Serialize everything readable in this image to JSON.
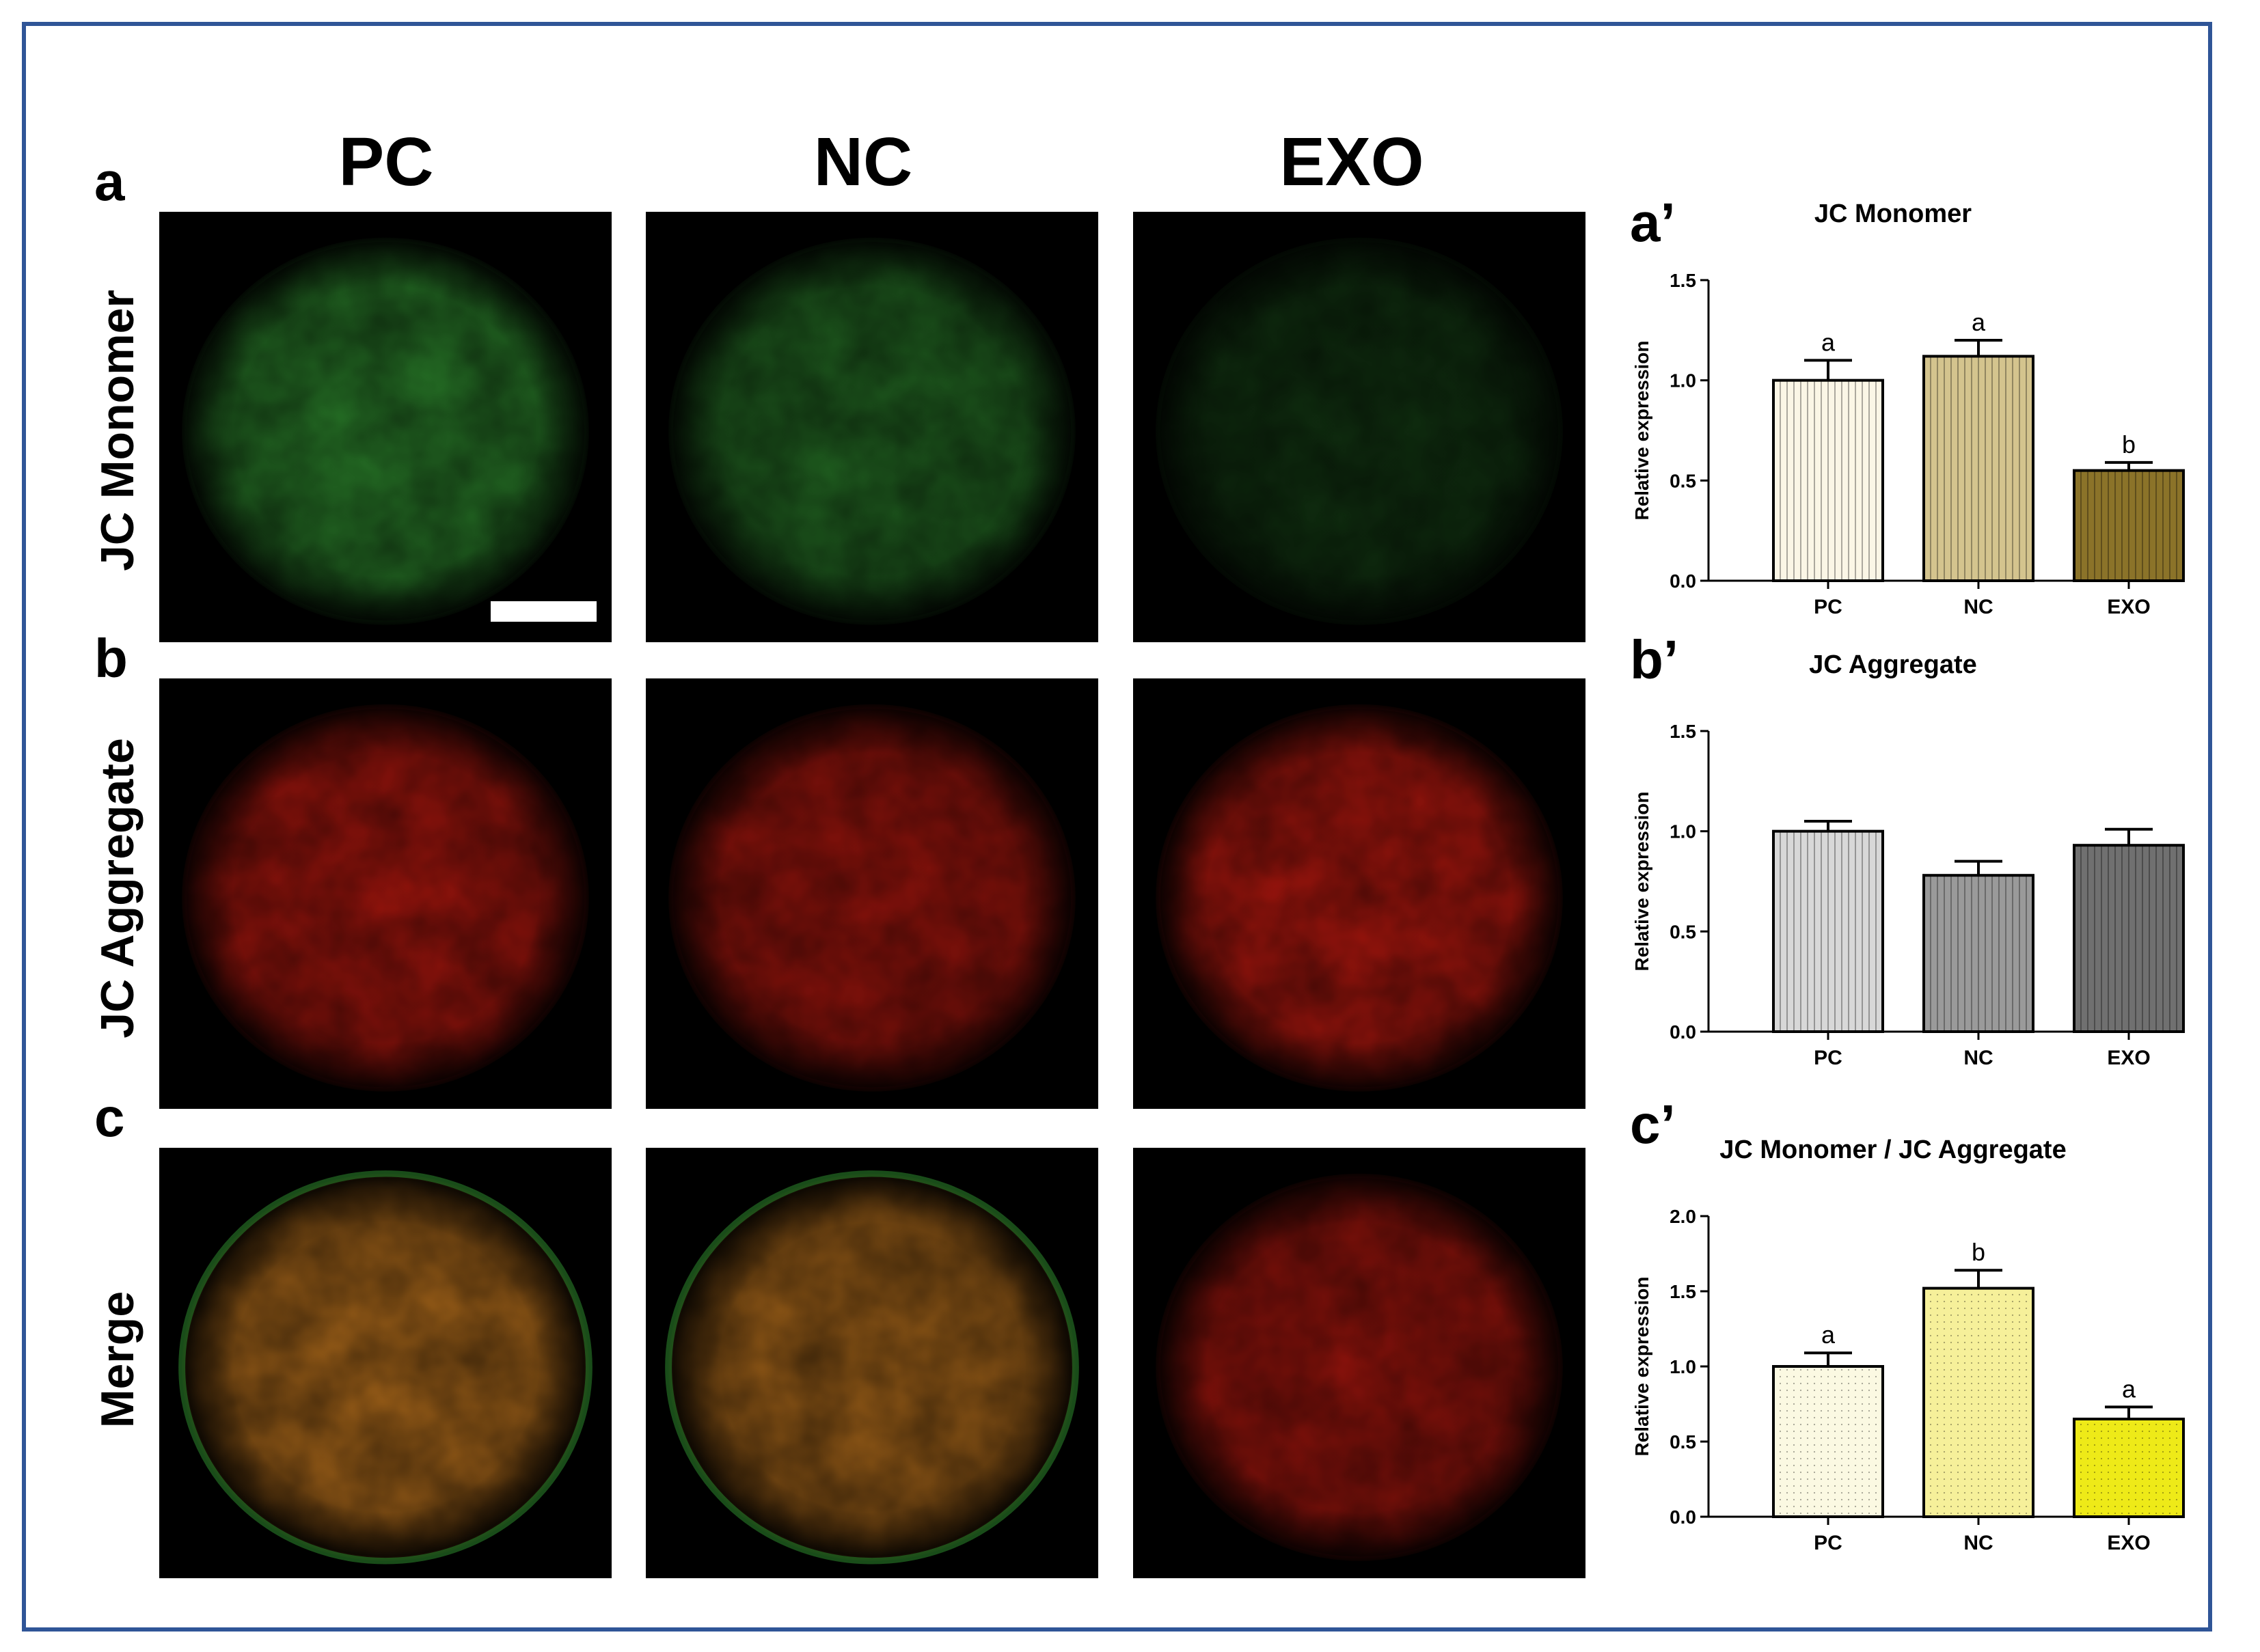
{
  "columns": [
    "PC",
    "NC",
    "EXO"
  ],
  "rows": [
    {
      "letter": "a",
      "label": "JC Monomer"
    },
    {
      "letter": "b",
      "label": "JC Aggregate"
    },
    {
      "letter": "c",
      "label": "Merge"
    }
  ],
  "colors": {
    "border": "#2f5597",
    "green": "#2e8b2e",
    "red": "#c81a10",
    "merge_orange": "#b8701c"
  },
  "chart_data": [
    {
      "panel": "a’",
      "type": "bar",
      "title": "JC Monomer",
      "ylabel": "Relative expression",
      "categories": [
        "PC",
        "NC",
        "EXO"
      ],
      "values": [
        1.0,
        1.12,
        0.55
      ],
      "errors": [
        0.1,
        0.08,
        0.04
      ],
      "significance": [
        "a",
        "a",
        "b"
      ],
      "ylim": [
        0,
        1.5
      ],
      "yticks": [
        "0.0",
        "0.5",
        "1.0",
        "1.5"
      ],
      "colors": [
        "#fbf6e6",
        "#d4c48e",
        "#8b7329"
      ],
      "pattern": "vertical-lines"
    },
    {
      "panel": "b’",
      "type": "bar",
      "title": "JC Aggregate",
      "ylabel": "Relative expression",
      "categories": [
        "PC",
        "NC",
        "EXO"
      ],
      "values": [
        1.0,
        0.78,
        0.93
      ],
      "errors": [
        0.05,
        0.07,
        0.08
      ],
      "significance": [
        "",
        "",
        ""
      ],
      "ylim": [
        0,
        1.5
      ],
      "yticks": [
        "0.0",
        "0.5",
        "1.0",
        "1.5"
      ],
      "colors": [
        "#d8d8d8",
        "#9a9a9a",
        "#707070"
      ],
      "pattern": "vertical-lines"
    },
    {
      "panel": "c’",
      "type": "bar",
      "title": "JC Monomer / JC Aggregate",
      "ylabel": "Relative expression",
      "categories": [
        "PC",
        "NC",
        "EXO"
      ],
      "values": [
        1.0,
        1.52,
        0.65
      ],
      "errors": [
        0.09,
        0.12,
        0.08
      ],
      "significance": [
        "a",
        "b",
        "a"
      ],
      "ylim": [
        0,
        2.0
      ],
      "yticks": [
        "0.0",
        "0.5",
        "1.0",
        "1.5",
        "2.0"
      ],
      "colors": [
        "#fbf9e2",
        "#f6f09a",
        "#eeea18"
      ],
      "pattern": "dots"
    }
  ]
}
